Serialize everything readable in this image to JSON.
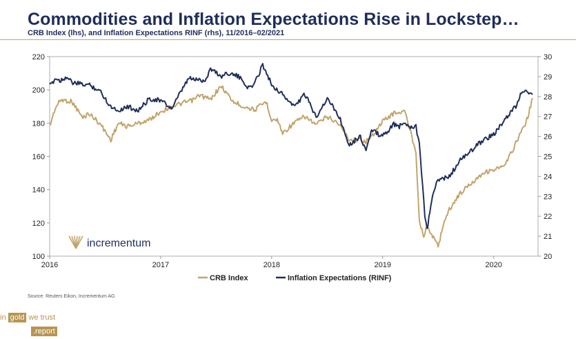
{
  "header": {
    "title": "Commodities and Inflation Expectations Rise in Lockstep…",
    "subtitle": "CRB Index (lhs), and Inflation Expectations RINF (rhs),  11/2016–02/2021"
  },
  "watermark": {
    "text": "incrementum"
  },
  "footer": {
    "source": "Source: Reuters Eikon, Incrementum AG",
    "brand_in": "in",
    "brand_gold": "gold",
    "brand_we_trust": "we trust",
    "brand_report": ".report"
  },
  "colors": {
    "crb": "#c2a46a",
    "rinf": "#1f2d5a",
    "accent": "#c2a46a"
  },
  "chart_data": {
    "type": "line",
    "title": "Commodities and Inflation Expectations Rise in Lockstep…",
    "x_range": [
      2016,
      2020.4
    ],
    "x_ticks": [
      2016,
      2017,
      2018,
      2019,
      2020
    ],
    "x_tick_labels": [
      "2016",
      "2017",
      "2018",
      "2019",
      "2020"
    ],
    "y_left": {
      "range": [
        100,
        220
      ],
      "ticks": [
        100,
        120,
        140,
        160,
        180,
        200,
        220
      ]
    },
    "y_right": {
      "range": [
        20,
        30
      ],
      "ticks": [
        20,
        21,
        22,
        23,
        24,
        25,
        26,
        27,
        28,
        29,
        30
      ]
    },
    "legend": "bottom-center",
    "series": [
      {
        "name": "CRB Index",
        "axis": "left",
        "color": "#c2a46a",
        "x": [
          2016.0,
          2016.05,
          2016.1,
          2016.2,
          2016.3,
          2016.35,
          2016.45,
          2016.55,
          2016.62,
          2016.7,
          2016.8,
          2016.9,
          2017.0,
          2017.1,
          2017.2,
          2017.3,
          2017.35,
          2017.45,
          2017.5,
          2017.55,
          2017.65,
          2017.75,
          2017.85,
          2017.95,
          2018.0,
          2018.05,
          2018.1,
          2018.2,
          2018.3,
          2018.4,
          2018.5,
          2018.6,
          2018.7,
          2018.8,
          2018.85,
          2018.9,
          2019.0,
          2019.1,
          2019.2,
          2019.3,
          2019.33,
          2019.37,
          2019.4,
          2019.45,
          2019.5,
          2019.55,
          2019.6,
          2019.7,
          2019.8,
          2019.9,
          2020.0,
          2020.1,
          2020.2,
          2020.3,
          2020.35
        ],
        "values": [
          178,
          189,
          194,
          193,
          183,
          186,
          180,
          170,
          180,
          178,
          180,
          182,
          187,
          190,
          192,
          194,
          197,
          194,
          199,
          202,
          193,
          190,
          188,
          193,
          182,
          182,
          174,
          180,
          184,
          179,
          184,
          180,
          170,
          170,
          169,
          172,
          181,
          186,
          187,
          163,
          122,
          112,
          118,
          112,
          106,
          120,
          128,
          138,
          144,
          150,
          152,
          154,
          168,
          182,
          195
        ]
      },
      {
        "name": "Inflation Expectations (RINF)",
        "axis": "right",
        "color": "#1f2d5a",
        "x": [
          2016.0,
          2016.05,
          2016.1,
          2016.15,
          2016.2,
          2016.3,
          2016.35,
          2016.45,
          2016.55,
          2016.62,
          2016.7,
          2016.8,
          2016.9,
          2017.0,
          2017.1,
          2017.2,
          2017.25,
          2017.4,
          2017.45,
          2017.55,
          2017.6,
          2017.7,
          2017.8,
          2017.85,
          2017.92,
          2018.0,
          2018.1,
          2018.2,
          2018.3,
          2018.4,
          2018.5,
          2018.6,
          2018.7,
          2018.8,
          2018.85,
          2018.9,
          2019.0,
          2019.1,
          2019.15,
          2019.2,
          2019.25,
          2019.3,
          2019.33,
          2019.35,
          2019.38,
          2019.4,
          2019.45,
          2019.5,
          2019.6,
          2019.7,
          2019.8,
          2019.9,
          2020.0,
          2020.1,
          2020.15,
          2020.2,
          2020.25,
          2020.3,
          2020.35
        ],
        "values": [
          28.5,
          28.9,
          28.8,
          29.0,
          28.7,
          28.6,
          28.6,
          28.3,
          27.5,
          27.3,
          27.5,
          27.3,
          27.9,
          27.8,
          27.4,
          28.4,
          28.9,
          28.8,
          29.4,
          29.0,
          29.2,
          29.0,
          28.4,
          28.7,
          29.6,
          28.6,
          28.1,
          27.5,
          28.1,
          27.0,
          27.9,
          27.1,
          25.6,
          26.0,
          25.3,
          26.3,
          26.0,
          26.6,
          26.5,
          26.7,
          26.5,
          26.5,
          25.6,
          24.3,
          21.9,
          21.3,
          23.1,
          23.8,
          24.0,
          24.8,
          25.3,
          25.8,
          26.1,
          26.8,
          27.2,
          27.5,
          28.2,
          28.3,
          28.1
        ]
      }
    ]
  }
}
